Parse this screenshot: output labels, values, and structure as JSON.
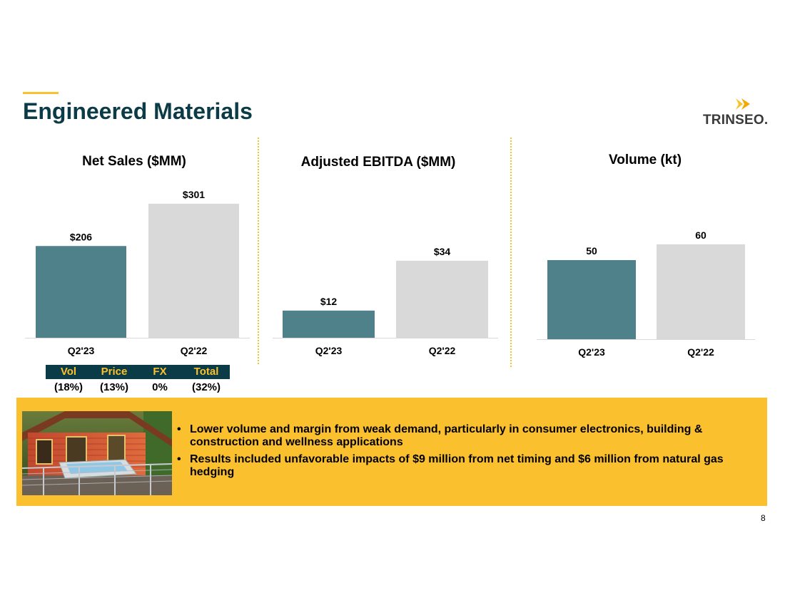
{
  "page": {
    "title": "Engineered Materials",
    "page_number": "8",
    "logo_text": "TRINSEO."
  },
  "colors": {
    "accent": "#FBC02D",
    "title": "#0B3B46",
    "current": "#4E8189",
    "prior": "#D9D9D9"
  },
  "chart_data": [
    {
      "type": "bar",
      "title": "Net Sales ($MM)",
      "categories": [
        "Q2'23",
        "Q2'22"
      ],
      "values": [
        206,
        301
      ],
      "data_labels": [
        "$206",
        "$301"
      ],
      "colors": [
        "#4E8189",
        "#D9D9D9"
      ]
    },
    {
      "type": "bar",
      "title": "Adjusted EBITDA ($MM)",
      "categories": [
        "Q2'23",
        "Q2'22"
      ],
      "values": [
        12,
        34
      ],
      "data_labels": [
        "$12",
        "$34"
      ],
      "colors": [
        "#4E8189",
        "#D9D9D9"
      ]
    },
    {
      "type": "bar",
      "title": "Volume (kt)",
      "categories": [
        "Q2'23",
        "Q2'22"
      ],
      "values": [
        50,
        60
      ],
      "data_labels": [
        "50",
        "60"
      ],
      "colors": [
        "#4E8189",
        "#D9D9D9"
      ]
    }
  ],
  "bridge": {
    "headers": [
      "Vol",
      "Price",
      "FX",
      "Total"
    ],
    "values": [
      "(18%)",
      "(13%)",
      "0%",
      "(32%)"
    ]
  },
  "highlight": {
    "bullets": [
      "Lower volume and margin from weak demand, particularly in consumer electronics, building & construction and wellness applications",
      "Results included unfavorable impacts of $9 million from net timing and $6 million from natural gas hedging"
    ],
    "bullet_symbol": "•"
  }
}
